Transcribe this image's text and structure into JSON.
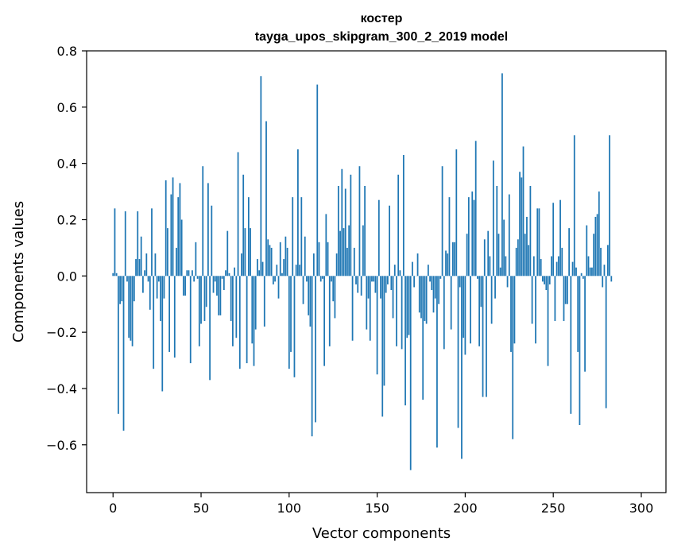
{
  "chart_data": {
    "type": "bar",
    "title_line1": "костер",
    "title_line2": "tayga_upos_skipgram_300_2_2019 model",
    "xlabel": "Vector components",
    "ylabel": "Components values",
    "xlim": [
      -15,
      314
    ],
    "ylim": [
      -0.77,
      0.8
    ],
    "xticks": [
      0,
      50,
      100,
      150,
      200,
      250,
      300
    ],
    "xtick_labels": [
      "0",
      "50",
      "100",
      "150",
      "200",
      "250",
      "300"
    ],
    "yticks": [
      -0.6,
      -0.4,
      -0.2,
      0.0,
      0.2,
      0.4,
      0.6,
      0.8
    ],
    "ytick_labels": [
      "−0.6",
      "−0.4",
      "−0.2",
      "0.0",
      "0.2",
      "0.4",
      "0.6",
      "0.8"
    ],
    "bar_color": "#1f77b4",
    "values": [
      0.01,
      0.24,
      0.01,
      -0.49,
      -0.1,
      -0.09,
      -0.55,
      0.23,
      -0.02,
      -0.22,
      -0.23,
      -0.25,
      -0.09,
      0.06,
      0.23,
      0.06,
      0.14,
      -0.06,
      0.02,
      0.08,
      -0.02,
      -0.12,
      0.24,
      -0.33,
      0.08,
      -0.08,
      -0.02,
      -0.16,
      -0.41,
      -0.08,
      0.34,
      0.17,
      -0.27,
      0.29,
      0.35,
      -0.29,
      0.1,
      0.28,
      0.33,
      0.2,
      -0.07,
      -0.07,
      0.02,
      0.02,
      -0.31,
      0.02,
      -0.02,
      0.12,
      -0.01,
      -0.25,
      -0.17,
      0.39,
      -0.16,
      -0.11,
      0.33,
      -0.37,
      0.25,
      -0.06,
      -0.02,
      -0.07,
      -0.14,
      -0.14,
      -0.01,
      -0.05,
      0.02,
      0.16,
      0.01,
      -0.16,
      -0.25,
      0.03,
      -0.22,
      0.44,
      -0.33,
      0.08,
      0.36,
      0.17,
      -0.31,
      0.28,
      0.17,
      -0.24,
      -0.32,
      -0.19,
      0.06,
      0.02,
      0.71,
      0.05,
      -0.18,
      0.55,
      0.13,
      0.11,
      0.1,
      -0.03,
      -0.02,
      0.04,
      -0.08,
      0.12,
      0.01,
      0.06,
      0.14,
      0.1,
      -0.33,
      -0.27,
      0.28,
      -0.36,
      0.04,
      0.45,
      0.04,
      0.28,
      -0.1,
      0.14,
      -0.02,
      -0.14,
      -0.18,
      -0.57,
      0.08,
      -0.52,
      0.68,
      0.12,
      -0.02,
      -0.01,
      -0.32,
      0.22,
      0.12,
      -0.25,
      -0.02,
      -0.09,
      -0.15,
      0.08,
      0.32,
      0.16,
      0.38,
      0.17,
      0.31,
      0.1,
      0.18,
      0.36,
      -0.23,
      0.1,
      -0.03,
      -0.06,
      0.39,
      -0.07,
      0.18,
      0.32,
      -0.19,
      -0.08,
      -0.23,
      -0.02,
      -0.02,
      -0.06,
      -0.35,
      0.27,
      -0.08,
      -0.5,
      -0.39,
      -0.06,
      -0.03,
      0.25,
      -0.05,
      -0.15,
      0.04,
      -0.25,
      0.36,
      0.02,
      -0.26,
      0.43,
      -0.46,
      -0.22,
      -0.21,
      -0.69,
      0.05,
      -0.04,
      0.0,
      0.08,
      -0.13,
      -0.15,
      -0.44,
      -0.16,
      -0.17,
      0.04,
      -0.02,
      -0.05,
      -0.13,
      -0.08,
      -0.61,
      -0.1,
      -0.01,
      0.39,
      -0.26,
      0.09,
      0.08,
      0.28,
      -0.19,
      0.12,
      0.12,
      0.45,
      -0.54,
      -0.04,
      -0.65,
      -0.22,
      -0.28,
      0.15,
      0.28,
      -0.24,
      0.3,
      0.27,
      0.48,
      -0.01,
      -0.25,
      -0.11,
      -0.43,
      0.13,
      -0.43,
      0.16,
      0.07,
      -0.17,
      0.41,
      -0.08,
      0.32,
      0.15,
      0.03,
      0.72,
      0.2,
      0.07,
      -0.04,
      0.29,
      -0.27,
      -0.58,
      -0.24,
      0.1,
      0.13,
      0.37,
      0.35,
      0.46,
      0.15,
      0.21,
      0.11,
      0.32,
      -0.17,
      0.07,
      -0.24,
      0.24,
      0.24,
      0.06,
      -0.02,
      -0.03,
      -0.05,
      -0.32,
      -0.03,
      0.07,
      0.26,
      -0.16,
      0.05,
      0.07,
      0.27,
      0.1,
      -0.16,
      -0.1,
      -0.1,
      0.17,
      -0.49,
      0.05,
      0.5,
      0.03,
      -0.27,
      -0.53,
      0.01,
      -0.01,
      -0.34,
      0.18,
      0.07,
      0.03,
      0.03,
      0.15,
      0.21,
      0.22,
      0.3,
      0.1,
      -0.04,
      0.04,
      -0.47,
      0.11,
      0.5,
      -0.02
    ]
  }
}
